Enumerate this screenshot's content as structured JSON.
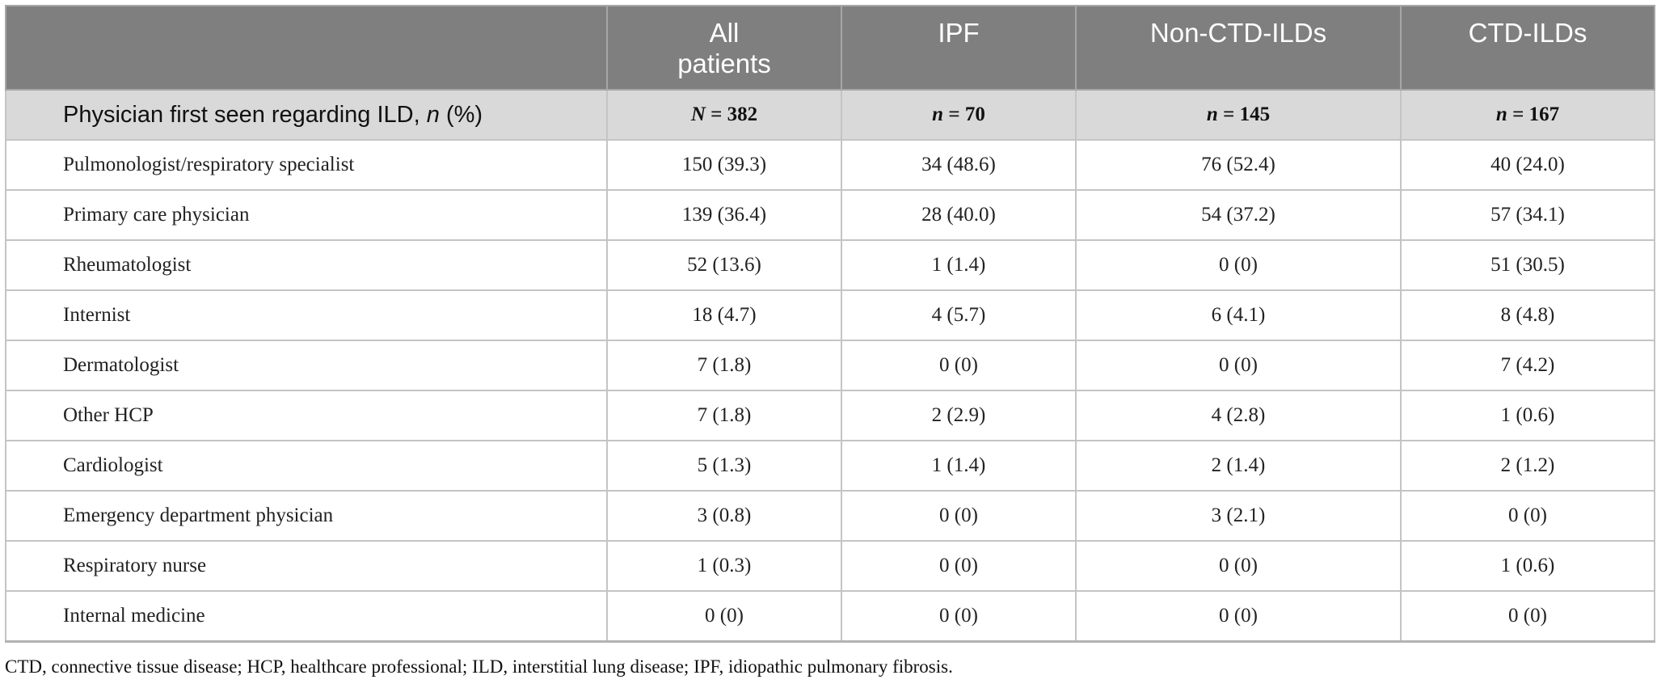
{
  "columns": [
    "",
    "All patients",
    "IPF",
    "Non-CTD-ILDs",
    "CTD-ILDs"
  ],
  "subheader": {
    "label_prefix": "Physician first seen regarding ILD, ",
    "label_italic": "n",
    "label_suffix": " (%)",
    "counts": [
      {
        "sym": "N",
        "rest": " = 382"
      },
      {
        "sym": "n",
        "rest": " = 70"
      },
      {
        "sym": "n",
        "rest": " = 145"
      },
      {
        "sym": "n",
        "rest": " = 167"
      }
    ]
  },
  "rows": [
    {
      "label": "Pulmonologist/respiratory specialist",
      "values": [
        "150 (39.3)",
        "34 (48.6)",
        "76 (52.4)",
        "40 (24.0)"
      ]
    },
    {
      "label": "Primary care physician",
      "values": [
        "139 (36.4)",
        "28 (40.0)",
        "54 (37.2)",
        "57 (34.1)"
      ]
    },
    {
      "label": "Rheumatologist",
      "values": [
        "52 (13.6)",
        "1 (1.4)",
        "0 (0)",
        "51 (30.5)"
      ]
    },
    {
      "label": "Internist",
      "values": [
        "18 (4.7)",
        "4 (5.7)",
        "6 (4.1)",
        "8 (4.8)"
      ]
    },
    {
      "label": "Dermatologist",
      "values": [
        "7 (1.8)",
        "0 (0)",
        "0 (0)",
        "7 (4.2)"
      ]
    },
    {
      "label": "Other HCP",
      "values": [
        "7 (1.8)",
        "2 (2.9)",
        "4 (2.8)",
        "1 (0.6)"
      ]
    },
    {
      "label": "Cardiologist",
      "values": [
        "5 (1.3)",
        "1 (1.4)",
        "2 (1.4)",
        "2 (1.2)"
      ]
    },
    {
      "label": "Emergency department physician",
      "values": [
        "3 (0.8)",
        "0 (0)",
        "3 (2.1)",
        "0 (0)"
      ]
    },
    {
      "label": "Respiratory nurse",
      "values": [
        "1 (0.3)",
        "0 (0)",
        "0 (0)",
        "1 (0.6)"
      ]
    },
    {
      "label": "Internal medicine",
      "values": [
        "0 (0)",
        "0 (0)",
        "0 (0)",
        "0 (0)"
      ]
    }
  ],
  "footnote": "CTD, connective tissue disease; HCP, healthcare professional; ILD, interstitial lung disease; IPF, idiopathic pulmonary fibrosis."
}
